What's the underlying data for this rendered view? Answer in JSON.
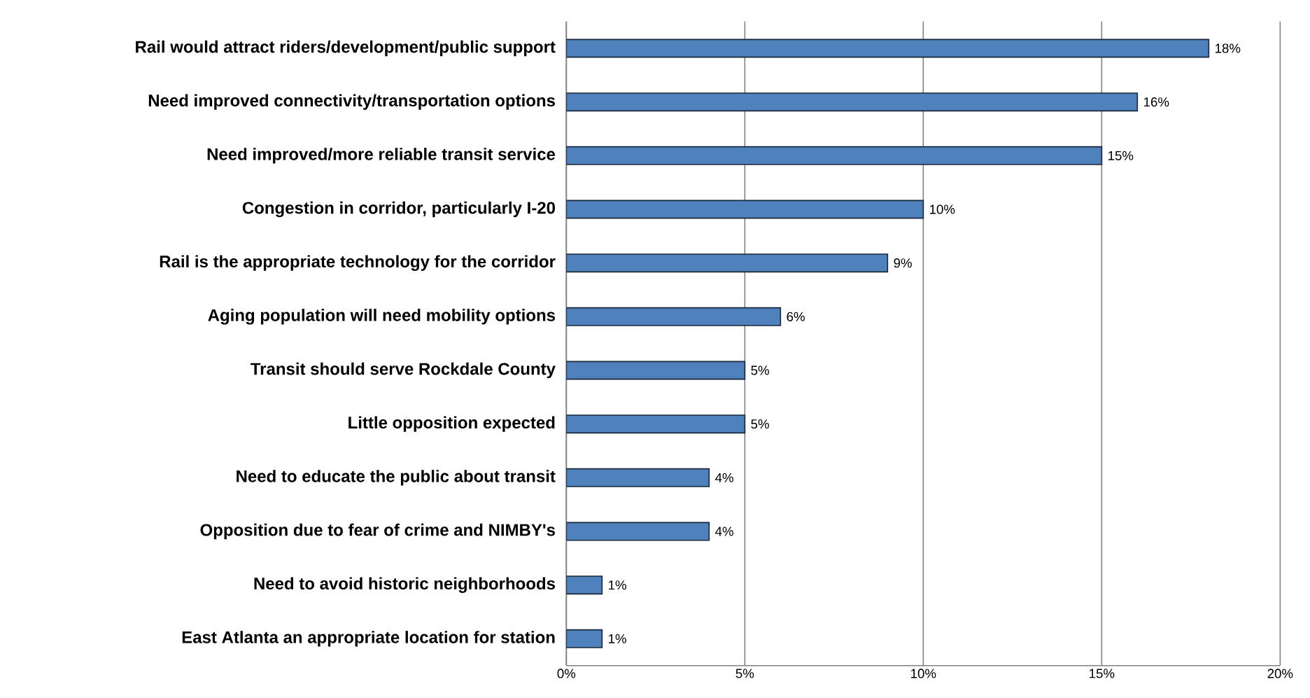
{
  "chart_data": {
    "type": "bar",
    "orientation": "horizontal",
    "categories": [
      "Rail would attract riders/development/public support",
      "Need improved connectivity/transportation options",
      "Need improved/more reliable transit service",
      "Congestion in corridor, particularly I-20",
      "Rail is the appropriate technology for the corridor",
      "Aging population will need mobility options",
      "Transit should serve Rockdale County",
      "Little opposition expected",
      "Need to educate the public about transit",
      "Opposition due to fear of crime and NIMBY's",
      "Need to avoid historic neighborhoods",
      "East Atlanta an appropriate location for station"
    ],
    "values": [
      18,
      16,
      15,
      10,
      9,
      6,
      5,
      5,
      4,
      4,
      1,
      1
    ],
    "value_labels": [
      "18%",
      "16%",
      "15%",
      "10%",
      "9%",
      "6%",
      "5%",
      "5%",
      "4%",
      "4%",
      "1%",
      "1%"
    ],
    "color": "#4f81bd",
    "xlim": [
      0,
      20
    ],
    "xticks": [
      {
        "value": 0,
        "label": "0%"
      },
      {
        "value": 5,
        "label": "5%"
      },
      {
        "value": 10,
        "label": "10%"
      },
      {
        "value": 15,
        "label": "15%"
      },
      {
        "value": 20,
        "label": "20%"
      }
    ],
    "grid": "x"
  }
}
